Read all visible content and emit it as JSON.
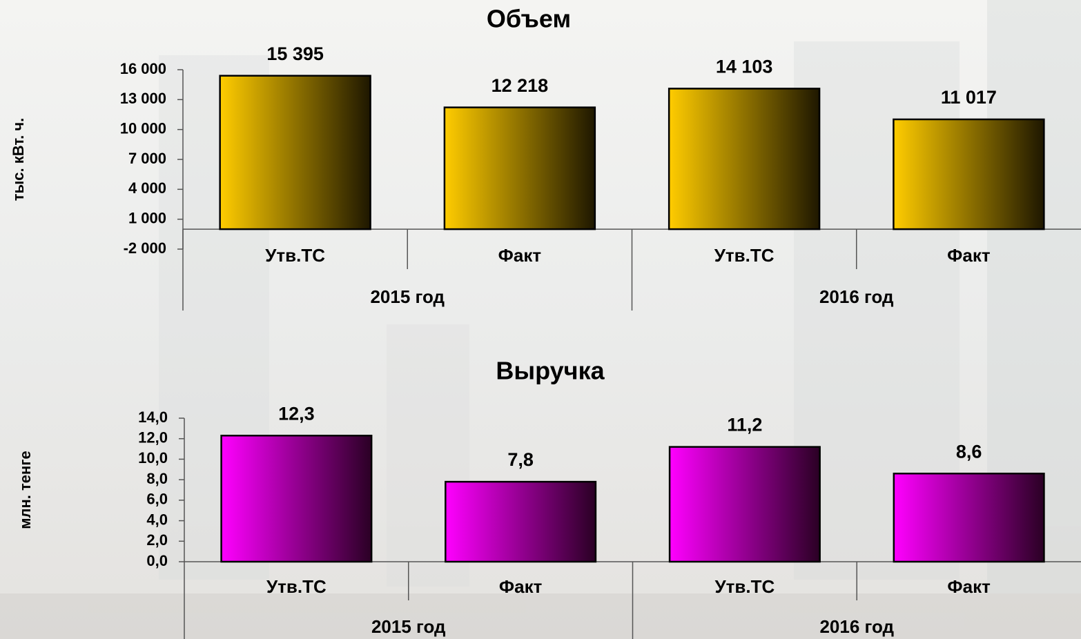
{
  "chart_data": [
    {
      "type": "bar",
      "title": "Объем",
      "y_label": "тыс. кВт. ч.",
      "categories": [
        "Утв.ТС",
        "Факт",
        "Утв.ТС",
        "Факт"
      ],
      "groups": [
        "2015 год",
        "2016 год"
      ],
      "values": [
        15395,
        12218,
        14103,
        11017
      ],
      "value_labels": [
        "15 395",
        "12 218",
        "14 103",
        "11 017"
      ],
      "color": "#ffcc00",
      "gradient_to": "#1e1700",
      "ylim": [
        -2000,
        16000
      ],
      "yticks": [
        {
          "value": -2000,
          "label": "-2 000"
        },
        {
          "value": 1000,
          "label": "1 000"
        },
        {
          "value": 4000,
          "label": "4 000"
        },
        {
          "value": 7000,
          "label": "7 000"
        },
        {
          "value": 10000,
          "label": "10 000"
        },
        {
          "value": 13000,
          "label": "13 000"
        },
        {
          "value": 16000,
          "label": "16 000"
        }
      ]
    },
    {
      "type": "bar",
      "title": "Выручка",
      "y_label": "млн. тенге",
      "categories": [
        "Утв.ТС",
        "Факт",
        "Утв.ТС",
        "Факт"
      ],
      "groups": [
        "2015 год",
        "2016 год"
      ],
      "values": [
        12.3,
        7.8,
        11.2,
        8.6
      ],
      "value_labels": [
        "12,3",
        "7,8",
        "11,2",
        "8,6"
      ],
      "color": "#ff00ff",
      "gradient_to": "#2a0024",
      "ylim": [
        0,
        14
      ],
      "yticks": [
        {
          "value": 0,
          "label": "0,0"
        },
        {
          "value": 2,
          "label": "2,0"
        },
        {
          "value": 4,
          "label": "4,0"
        },
        {
          "value": 6,
          "label": "6,0"
        },
        {
          "value": 8,
          "label": "8,0"
        },
        {
          "value": 10,
          "label": "10,0"
        },
        {
          "value": 12,
          "label": "12,0"
        },
        {
          "value": 14,
          "label": "14,0"
        }
      ]
    }
  ]
}
